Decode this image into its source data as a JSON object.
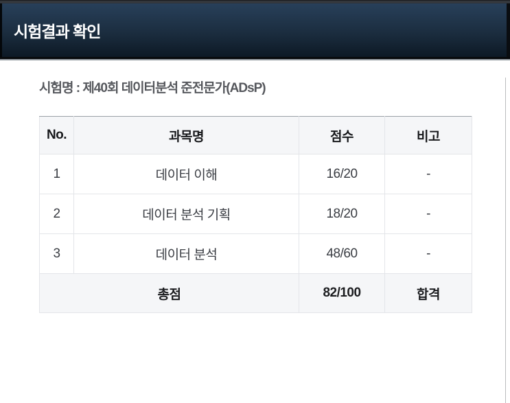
{
  "header": {
    "title": "시험결과 확인"
  },
  "exam": {
    "name_line": "시험명 : 제40회 데이터분석 준전문가(ADsP)"
  },
  "table": {
    "headers": [
      "No.",
      "과목명",
      "점수",
      "비고"
    ],
    "rows": [
      {
        "no": "1",
        "subject": "데이터 이해",
        "score": "16/20",
        "note": "-"
      },
      {
        "no": "2",
        "subject": "데이터 분석 기획",
        "score": "18/20",
        "note": "-"
      },
      {
        "no": "3",
        "subject": "데이터 분석",
        "score": "48/60",
        "note": "-"
      }
    ],
    "total": {
      "label": "총점",
      "score": "82/100",
      "note": "합격"
    }
  },
  "colors": {
    "header_navy_top": "#28405a",
    "header_navy_bottom": "#0d1925",
    "table_zebra_bg": "#f5f6f8",
    "table_border": "#e3e5e9",
    "table_top_border": "#9aa0a6",
    "title_text": "#ffffff",
    "body_text": "#3a3d43"
  }
}
